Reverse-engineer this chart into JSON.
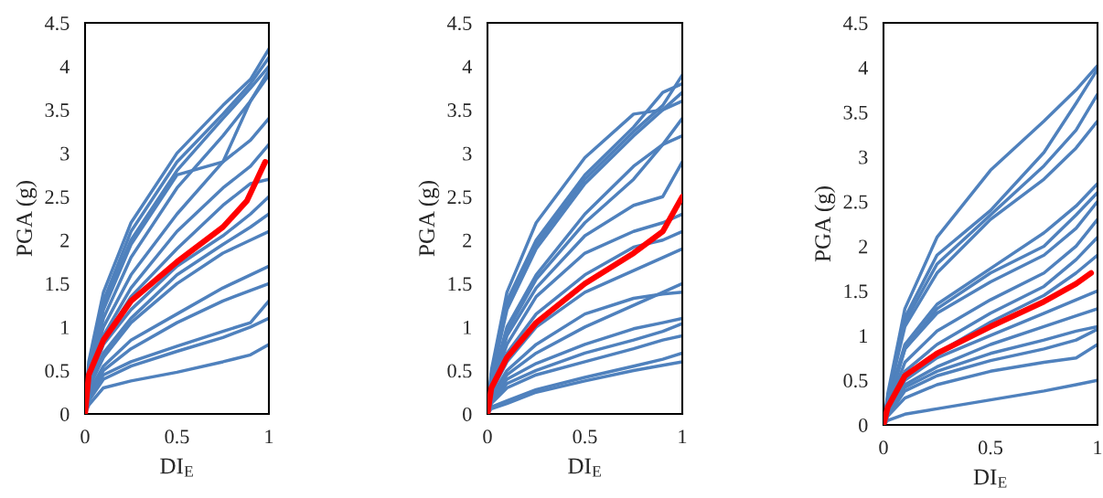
{
  "chart_data": [
    {
      "type": "line",
      "xlabel": "DI$_{E}$",
      "ylabel": "PGA (g)",
      "xlim": [
        0,
        1
      ],
      "ylim": [
        0,
        4.5
      ],
      "xticks": [
        0,
        0.5,
        1
      ],
      "yticks": [
        0,
        0.5,
        1,
        1.5,
        2,
        2.5,
        3,
        3.5,
        4,
        4.5
      ],
      "grid": false,
      "legend": false,
      "marker": "none",
      "line_style": "solid",
      "x": [
        0,
        0.02,
        0.1,
        0.25,
        0.5,
        0.75,
        0.9,
        1
      ],
      "series": [
        {
          "color": "#4f81bd",
          "values": [
            0,
            0.6,
            1.4,
            2.2,
            3.0,
            3.55,
            3.85,
            4.2
          ]
        },
        {
          "color": "#4f81bd",
          "values": [
            0,
            0.55,
            1.3,
            2.1,
            2.9,
            3.45,
            3.8,
            4.1
          ]
        },
        {
          "color": "#4f81bd",
          "values": [
            0,
            0.5,
            1.25,
            2.0,
            2.8,
            3.4,
            3.75,
            4.0
          ]
        },
        {
          "color": "#4f81bd",
          "values": [
            0,
            0.5,
            1.2,
            1.95,
            2.75,
            2.9,
            3.6,
            3.9
          ]
        },
        {
          "color": "#4f81bd",
          "values": [
            0,
            0.45,
            1.1,
            1.8,
            2.6,
            3.2,
            3.6,
            3.95
          ]
        },
        {
          "color": "#4f81bd",
          "values": [
            0,
            0.45,
            1.0,
            1.6,
            2.3,
            2.9,
            3.15,
            3.4
          ]
        },
        {
          "color": "#4f81bd",
          "values": [
            0,
            0.4,
            0.9,
            1.45,
            2.1,
            2.6,
            2.85,
            3.1
          ]
        },
        {
          "color": "#4f81bd",
          "values": [
            0,
            0.4,
            0.85,
            1.35,
            1.9,
            2.4,
            2.65,
            2.7
          ]
        },
        {
          "color": "#4f81bd",
          "values": [
            0,
            0.35,
            0.8,
            1.2,
            1.7,
            2.05,
            2.3,
            2.5
          ]
        },
        {
          "color": "#4f81bd",
          "values": [
            0,
            0.3,
            0.7,
            1.1,
            1.6,
            1.95,
            2.15,
            2.3
          ]
        },
        {
          "color": "#4f81bd",
          "values": [
            0,
            0.3,
            0.65,
            1.05,
            1.5,
            1.85,
            2.0,
            2.1
          ]
        },
        {
          "color": "#4f81bd",
          "values": [
            0,
            0.25,
            0.55,
            0.85,
            1.15,
            1.45,
            1.6,
            1.7
          ]
        },
        {
          "color": "#4f81bd",
          "values": [
            0,
            0.2,
            0.5,
            0.75,
            1.05,
            1.3,
            1.42,
            1.5
          ]
        },
        {
          "color": "#4f81bd",
          "values": [
            0,
            0.2,
            0.45,
            0.6,
            0.78,
            0.95,
            1.05,
            1.3
          ]
        },
        {
          "color": "#4f81bd",
          "values": [
            0,
            0.15,
            0.4,
            0.55,
            0.72,
            0.88,
            1.0,
            1.1
          ]
        },
        {
          "color": "#4f81bd",
          "values": [
            0,
            0.1,
            0.3,
            0.38,
            0.48,
            0.6,
            0.68,
            0.8
          ]
        },
        {
          "color": "#ff0000",
          "x": [
            0,
            0.02,
            0.1,
            0.25,
            0.5,
            0.75,
            0.88,
            0.98
          ],
          "values": [
            0,
            0.45,
            0.85,
            1.3,
            1.75,
            2.15,
            2.45,
            2.9
          ]
        }
      ]
    },
    {
      "type": "line",
      "xlabel": "DI$_{E}$",
      "ylabel": "PGA (g)",
      "xlim": [
        0,
        1
      ],
      "ylim": [
        0,
        4.5
      ],
      "xticks": [
        0,
        0.5,
        1
      ],
      "yticks": [
        0,
        0.5,
        1,
        1.5,
        2,
        2.5,
        3,
        3.5,
        4,
        4.5
      ],
      "grid": false,
      "legend": false,
      "marker": "none",
      "line_style": "solid",
      "x": [
        0,
        0.02,
        0.1,
        0.25,
        0.5,
        0.75,
        0.9,
        1
      ],
      "series": [
        {
          "color": "#4f81bd",
          "values": [
            0,
            0.5,
            1.4,
            2.2,
            2.95,
            3.45,
            3.5,
            3.6
          ]
        },
        {
          "color": "#4f81bd",
          "values": [
            0,
            0.45,
            1.3,
            2.0,
            2.75,
            3.3,
            3.7,
            3.8
          ]
        },
        {
          "color": "#4f81bd",
          "values": [
            0,
            0.45,
            1.25,
            1.95,
            2.7,
            3.25,
            3.55,
            3.9
          ]
        },
        {
          "color": "#4f81bd",
          "values": [
            0,
            0.4,
            1.2,
            1.9,
            2.65,
            3.2,
            3.5,
            3.7
          ]
        },
        {
          "color": "#4f81bd",
          "values": [
            0,
            0.35,
            1.0,
            1.6,
            2.3,
            2.85,
            3.1,
            3.4
          ]
        },
        {
          "color": "#4f81bd",
          "values": [
            0,
            0.35,
            0.95,
            1.55,
            2.2,
            2.7,
            3.1,
            3.2
          ]
        },
        {
          "color": "#4f81bd",
          "values": [
            0,
            0.3,
            0.9,
            1.45,
            2.05,
            2.4,
            2.5,
            2.9
          ]
        },
        {
          "color": "#4f81bd",
          "values": [
            0,
            0.3,
            0.8,
            1.35,
            1.85,
            2.1,
            2.2,
            2.3
          ]
        },
        {
          "color": "#4f81bd",
          "values": [
            0,
            0.25,
            0.7,
            1.15,
            1.6,
            1.92,
            2.0,
            2.1
          ]
        },
        {
          "color": "#4f81bd",
          "values": [
            0,
            0.25,
            0.6,
            1.0,
            1.4,
            1.65,
            1.8,
            1.9
          ]
        },
        {
          "color": "#4f81bd",
          "values": [
            0,
            0.2,
            0.5,
            0.8,
            1.15,
            1.33,
            1.38,
            1.4
          ]
        },
        {
          "color": "#4f81bd",
          "values": [
            0,
            0.2,
            0.45,
            0.7,
            1.0,
            1.25,
            1.4,
            1.5
          ]
        },
        {
          "color": "#4f81bd",
          "values": [
            0,
            0.15,
            0.4,
            0.58,
            0.8,
            0.98,
            1.05,
            1.1
          ]
        },
        {
          "color": "#4f81bd",
          "values": [
            0,
            0.13,
            0.35,
            0.5,
            0.7,
            0.85,
            0.95,
            1.04
          ]
        },
        {
          "color": "#4f81bd",
          "values": [
            0,
            0.12,
            0.3,
            0.45,
            0.6,
            0.75,
            0.85,
            0.9
          ]
        },
        {
          "color": "#4f81bd",
          "values": [
            0,
            0.08,
            0.15,
            0.28,
            0.42,
            0.55,
            0.63,
            0.7
          ]
        },
        {
          "color": "#4f81bd",
          "values": [
            0,
            0.06,
            0.12,
            0.25,
            0.38,
            0.5,
            0.56,
            0.6
          ]
        },
        {
          "color": "#ff0000",
          "values": [
            0,
            0.3,
            0.65,
            1.05,
            1.5,
            1.85,
            2.1,
            2.5
          ]
        }
      ]
    },
    {
      "type": "line",
      "xlabel": "DI$_{E}$",
      "ylabel": "PGA (g)",
      "xlim": [
        0,
        1
      ],
      "ylim": [
        0,
        4.5
      ],
      "xticks": [
        0,
        0.5,
        1
      ],
      "yticks": [
        0,
        0.5,
        1,
        1.5,
        2,
        2.5,
        3,
        3.5,
        4,
        4.5
      ],
      "grid": false,
      "legend": false,
      "marker": "none",
      "line_style": "solid",
      "x": [
        0,
        0.02,
        0.1,
        0.25,
        0.5,
        0.75,
        0.9,
        1
      ],
      "series": [
        {
          "color": "#4f81bd",
          "values": [
            0,
            0.35,
            1.3,
            2.1,
            2.85,
            3.4,
            3.75,
            4.02
          ]
        },
        {
          "color": "#4f81bd",
          "values": [
            0,
            0.3,
            1.2,
            1.9,
            2.4,
            3.05,
            3.6,
            3.98
          ]
        },
        {
          "color": "#4f81bd",
          "values": [
            0,
            0.3,
            1.15,
            1.8,
            2.35,
            2.9,
            3.3,
            3.7
          ]
        },
        {
          "color": "#4f81bd",
          "values": [
            0,
            0.3,
            1.1,
            1.7,
            2.3,
            2.75,
            3.1,
            3.4
          ]
        },
        {
          "color": "#4f81bd",
          "values": [
            0,
            0.25,
            0.9,
            1.35,
            1.75,
            2.15,
            2.45,
            2.7
          ]
        },
        {
          "color": "#4f81bd",
          "values": [
            0,
            0.25,
            0.85,
            1.3,
            1.7,
            2.0,
            2.35,
            2.6
          ]
        },
        {
          "color": "#4f81bd",
          "values": [
            0,
            0.2,
            0.85,
            1.25,
            1.6,
            1.9,
            2.2,
            2.5
          ]
        },
        {
          "color": "#4f81bd",
          "values": [
            0,
            0.2,
            0.7,
            1.05,
            1.4,
            1.7,
            2.0,
            2.3
          ]
        },
        {
          "color": "#4f81bd",
          "values": [
            0,
            0.18,
            0.6,
            0.9,
            1.25,
            1.55,
            1.85,
            2.1
          ]
        },
        {
          "color": "#4f81bd",
          "values": [
            0,
            0.15,
            0.55,
            0.8,
            1.15,
            1.45,
            1.7,
            1.9
          ]
        },
        {
          "color": "#4f81bd",
          "values": [
            0,
            0.15,
            0.5,
            0.75,
            1.0,
            1.25,
            1.4,
            1.5
          ]
        },
        {
          "color": "#4f81bd",
          "values": [
            0,
            0.12,
            0.45,
            0.65,
            0.9,
            1.1,
            1.22,
            1.3
          ]
        },
        {
          "color": "#4f81bd",
          "values": [
            0,
            0.12,
            0.42,
            0.6,
            0.8,
            0.95,
            1.05,
            1.1
          ]
        },
        {
          "color": "#4f81bd",
          "values": [
            0,
            0.1,
            0.38,
            0.55,
            0.72,
            0.85,
            0.95,
            1.07
          ]
        },
        {
          "color": "#4f81bd",
          "values": [
            0,
            0.1,
            0.3,
            0.45,
            0.6,
            0.7,
            0.75,
            0.9
          ]
        },
        {
          "color": "#4f81bd",
          "values": [
            0,
            0.05,
            0.12,
            0.18,
            0.28,
            0.38,
            0.45,
            0.5
          ]
        },
        {
          "color": "#ff0000",
          "x": [
            0,
            0.02,
            0.1,
            0.25,
            0.5,
            0.75,
            0.9,
            0.97
          ],
          "values": [
            0,
            0.2,
            0.55,
            0.8,
            1.1,
            1.38,
            1.58,
            1.7
          ]
        }
      ]
    }
  ]
}
